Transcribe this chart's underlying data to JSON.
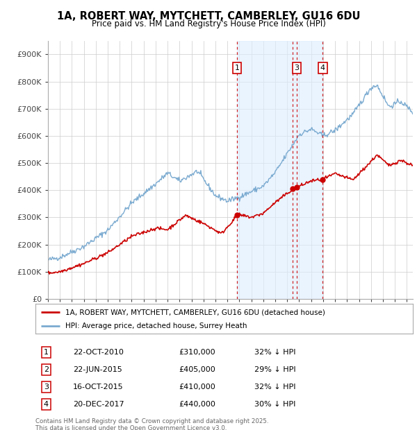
{
  "title1": "1A, ROBERT WAY, MYTCHETT, CAMBERLEY, GU16 6DU",
  "title2": "Price paid vs. HM Land Registry's House Price Index (HPI)",
  "ylim": [
    0,
    950000
  ],
  "yticks": [
    0,
    100000,
    200000,
    300000,
    400000,
    500000,
    600000,
    700000,
    800000,
    900000
  ],
  "ytick_labels": [
    "£0",
    "£100K",
    "£200K",
    "£300K",
    "£400K",
    "£500K",
    "£600K",
    "£700K",
    "£800K",
    "£900K"
  ],
  "bg_color": "#ffffff",
  "grid_color": "#cccccc",
  "hpi_color": "#7aaad0",
  "price_color": "#cc0000",
  "transactions": [
    {
      "num": 1,
      "date_dec": 2010.81,
      "price": 310000,
      "label": "22-OCT-2010",
      "price_str": "£310,000",
      "pct": "32% ↓ HPI",
      "show_box": true
    },
    {
      "num": 2,
      "date_dec": 2015.47,
      "price": 405000,
      "label": "22-JUN-2015",
      "price_str": "£405,000",
      "pct": "29% ↓ HPI",
      "show_box": false
    },
    {
      "num": 3,
      "date_dec": 2015.79,
      "price": 410000,
      "label": "16-OCT-2015",
      "price_str": "£410,000",
      "pct": "32% ↓ HPI",
      "show_box": true
    },
    {
      "num": 4,
      "date_dec": 2017.97,
      "price": 440000,
      "label": "20-DEC-2017",
      "price_str": "£440,000",
      "pct": "30% ↓ HPI",
      "show_box": true
    }
  ],
  "legend1": "1A, ROBERT WAY, MYTCHETT, CAMBERLEY, GU16 6DU (detached house)",
  "legend2": "HPI: Average price, detached house, Surrey Heath",
  "footnote": "Contains HM Land Registry data © Crown copyright and database right 2025.\nThis data is licensed under the Open Government Licence v3.0.",
  "xlim_start": 1995.0,
  "xlim_end": 2025.5,
  "shade_start": 2010.81,
  "shade_end": 2017.97
}
